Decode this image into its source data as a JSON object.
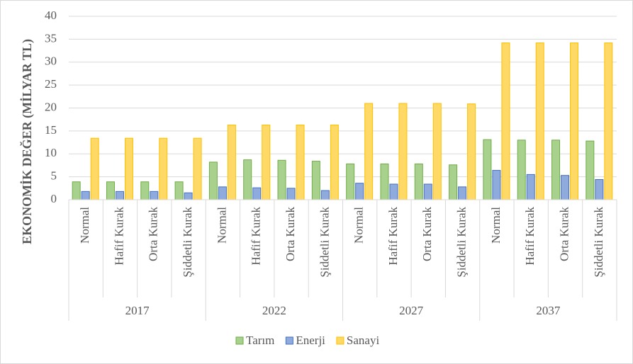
{
  "chart_data": {
    "type": "bar",
    "y_label": "EKONOMİK DEĞER (MİLYAR TL)",
    "categories": [
      "Normal",
      "Hafif Kurak",
      "Orta Kurak",
      "Şiddetli Kurak",
      "Normal",
      "Hafif Kurak",
      "Orta Kurak",
      "Şiddetli Kurak",
      "Normal",
      "Hafif Kurak",
      "Orta Kurak",
      "Şiddetli Kurak",
      "Normal",
      "Hafif Kurak",
      "Orta Kurak",
      "Şiddetli Kurak"
    ],
    "category_groups": [
      "2017",
      "2022",
      "2027",
      "2037"
    ],
    "series": [
      {
        "name": "Tarım",
        "color": "#a9d18e",
        "values": [
          3.9,
          3.9,
          3.9,
          3.9,
          8.2,
          8.7,
          8.6,
          8.4,
          7.8,
          7.8,
          7.8,
          7.6,
          13.1,
          13.0,
          13.0,
          12.8
        ]
      },
      {
        "name": "Enerji",
        "color": "#8faadc",
        "values": [
          1.8,
          1.8,
          1.8,
          1.5,
          2.8,
          2.6,
          2.5,
          2.0,
          3.6,
          3.4,
          3.4,
          2.8,
          6.4,
          5.5,
          5.3,
          4.4
        ]
      },
      {
        "name": "Sanayi",
        "color": "#ffd966",
        "values": [
          13.4,
          13.4,
          13.4,
          13.4,
          16.3,
          16.3,
          16.3,
          16.3,
          21.0,
          21.0,
          21.0,
          20.9,
          34.2,
          34.2,
          34.2,
          34.2
        ]
      }
    ],
    "ylim": [
      0,
      40
    ],
    "yticks": [
      0,
      5,
      10,
      15,
      20,
      25,
      30,
      35,
      40
    ],
    "grid": true,
    "legend": "bottom"
  }
}
